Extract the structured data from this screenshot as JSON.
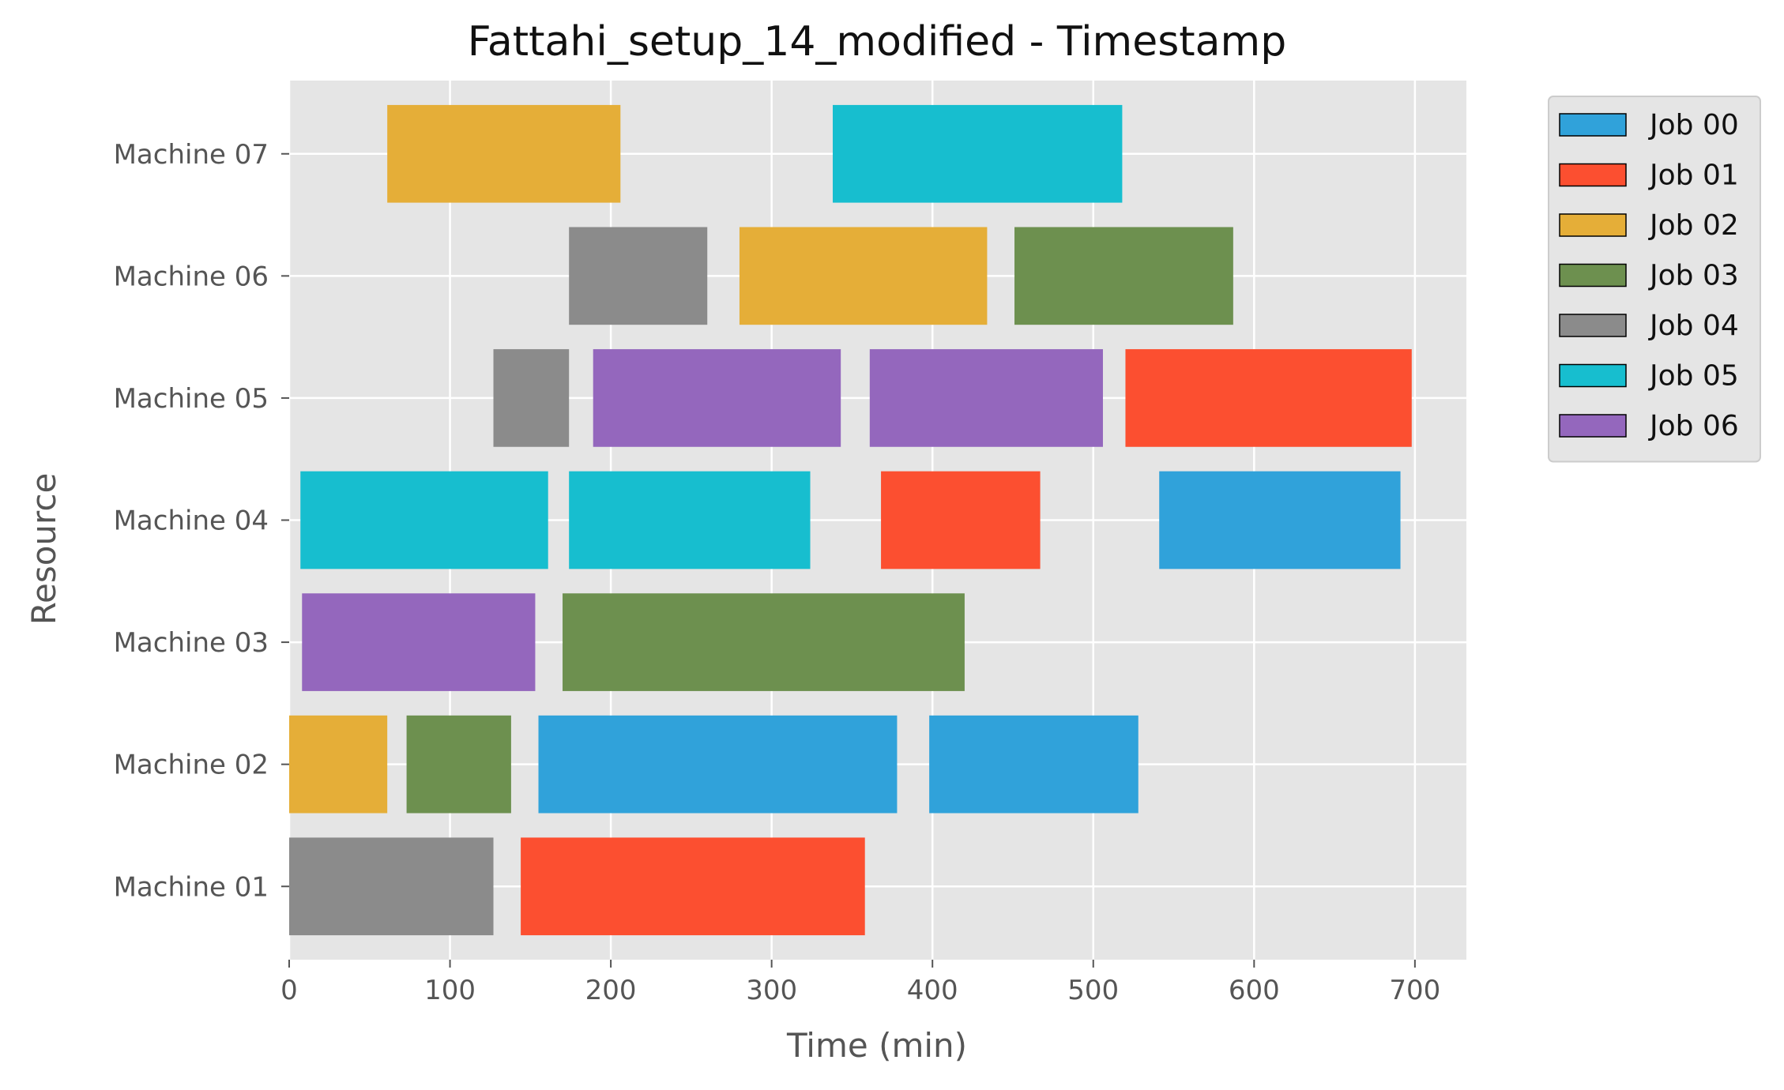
{
  "chart_data": {
    "type": "gantt",
    "title": "Fattahi_setup_14_modified - Timestamp",
    "xlabel": "Time (min)",
    "ylabel": "Resource",
    "xlim": [
      0,
      732
    ],
    "xticks": [
      0,
      100,
      200,
      300,
      400,
      500,
      600,
      700
    ],
    "xtick_labels": [
      "0",
      "100",
      "200",
      "300",
      "400",
      "500",
      "600",
      "700"
    ],
    "grid": true,
    "legend_position": "outside right, top",
    "resources": [
      "Machine 01",
      "Machine 02",
      "Machine 03",
      "Machine 04",
      "Machine 05",
      "Machine 06",
      "Machine 07"
    ],
    "jobs": [
      {
        "name": "Job 00",
        "color": "#30A2DA"
      },
      {
        "name": "Job 01",
        "color": "#FC4F30"
      },
      {
        "name": "Job 02",
        "color": "#E5AE38"
      },
      {
        "name": "Job 03",
        "color": "#6D904F"
      },
      {
        "name": "Job 04",
        "color": "#8B8B8B"
      },
      {
        "name": "Job 05",
        "color": "#17BECF"
      },
      {
        "name": "Job 06",
        "color": "#9467BD"
      }
    ],
    "tasks": [
      {
        "resource": "Machine 01",
        "job": "Job 04",
        "start": 0,
        "end": 127
      },
      {
        "resource": "Machine 01",
        "job": "Job 01",
        "start": 144,
        "end": 358
      },
      {
        "resource": "Machine 02",
        "job": "Job 02",
        "start": 0,
        "end": 61
      },
      {
        "resource": "Machine 02",
        "job": "Job 03",
        "start": 73,
        "end": 138
      },
      {
        "resource": "Machine 02",
        "job": "Job 00",
        "start": 155,
        "end": 378
      },
      {
        "resource": "Machine 02",
        "job": "Job 00",
        "start": 398,
        "end": 528
      },
      {
        "resource": "Machine 03",
        "job": "Job 06",
        "start": 8,
        "end": 153
      },
      {
        "resource": "Machine 03",
        "job": "Job 03",
        "start": 170,
        "end": 420
      },
      {
        "resource": "Machine 04",
        "job": "Job 05",
        "start": 7,
        "end": 161
      },
      {
        "resource": "Machine 04",
        "job": "Job 05",
        "start": 174,
        "end": 324
      },
      {
        "resource": "Machine 04",
        "job": "Job 01",
        "start": 368,
        "end": 467
      },
      {
        "resource": "Machine 04",
        "job": "Job 00",
        "start": 541,
        "end": 691
      },
      {
        "resource": "Machine 05",
        "job": "Job 04",
        "start": 127,
        "end": 174
      },
      {
        "resource": "Machine 05",
        "job": "Job 06",
        "start": 189,
        "end": 343
      },
      {
        "resource": "Machine 05",
        "job": "Job 06",
        "start": 361,
        "end": 506
      },
      {
        "resource": "Machine 05",
        "job": "Job 01",
        "start": 520,
        "end": 698
      },
      {
        "resource": "Machine 06",
        "job": "Job 04",
        "start": 174,
        "end": 260
      },
      {
        "resource": "Machine 06",
        "job": "Job 02",
        "start": 280,
        "end": 434
      },
      {
        "resource": "Machine 06",
        "job": "Job 03",
        "start": 451,
        "end": 587
      },
      {
        "resource": "Machine 07",
        "job": "Job 02",
        "start": 61,
        "end": 206
      },
      {
        "resource": "Machine 07",
        "job": "Job 05",
        "start": 338,
        "end": 518
      }
    ]
  },
  "colors": {
    "plot_background": "#E5E5E5",
    "grid": "#FFFFFF",
    "legend_background": "#E5E5E5"
  }
}
